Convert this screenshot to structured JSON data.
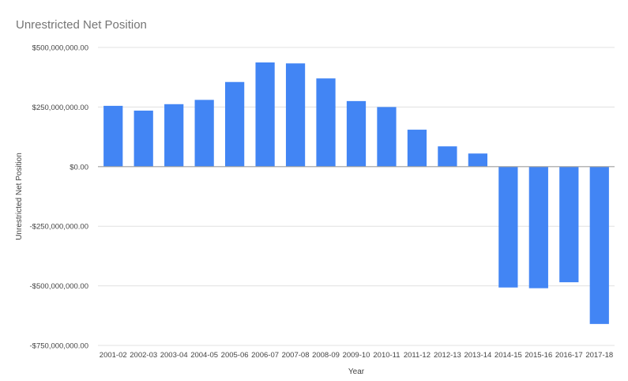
{
  "chart_data": {
    "type": "bar",
    "title": "Unrestricted Net Position",
    "xlabel": "Year",
    "ylabel": "Unrestricted Net Position",
    "ylim": [
      -750000000,
      500000000
    ],
    "yticks": [
      500000000,
      250000000,
      0,
      -250000000,
      -500000000,
      -750000000
    ],
    "ytick_labels": [
      "$500,000,000.00",
      "$250,000,000.00",
      "$0.00",
      "-$250,000,000.00",
      "-$500,000,000.00",
      "-$750,000,000.00"
    ],
    "grid": true,
    "legend": "none",
    "bar_color": "#4285f4",
    "categories": [
      "2001-02",
      "2002-03",
      "2003-04",
      "2004-05",
      "2005-06",
      "2006-07",
      "2007-08",
      "2008-09",
      "2009-10",
      "2010-11",
      "2011-12",
      "2012-13",
      "2013-14",
      "2014-15",
      "2015-16",
      "2016-17",
      "2017-18"
    ],
    "values": [
      255000000,
      235000000,
      262000000,
      280000000,
      355000000,
      437000000,
      433000000,
      370000000,
      275000000,
      250000000,
      155000000,
      85000000,
      55000000,
      -507000000,
      -510000000,
      -485000000,
      -660000000
    ]
  }
}
